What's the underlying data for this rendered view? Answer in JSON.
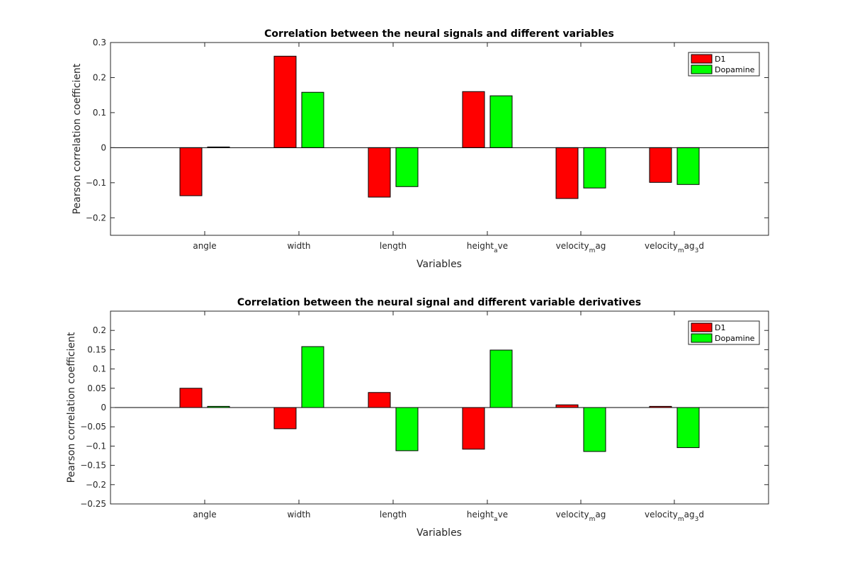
{
  "chart_data": [
    {
      "type": "bar",
      "title": "Correlation between the neural signals and different variables",
      "xlabel": "Variables",
      "ylabel": "Pearson correlation coefficient",
      "ylim": [
        -0.25,
        0.3
      ],
      "yticks": [
        -0.2,
        -0.1,
        0,
        0.1,
        0.2,
        0.3
      ],
      "ytick_labels": [
        "−0.2",
        "−0.1",
        "0",
        "0.1",
        "0.2",
        "0.3"
      ],
      "categories": [
        {
          "base": "angle",
          "sub": "",
          "rest": ""
        },
        {
          "base": "width",
          "sub": "",
          "rest": ""
        },
        {
          "base": "length",
          "sub": "",
          "rest": ""
        },
        {
          "base": "height",
          "sub": "a",
          "rest": "ve"
        },
        {
          "base": "velocity",
          "sub": "m",
          "rest": "ag"
        },
        {
          "base": "velocity",
          "sub": "m",
          "rest": "ag",
          "sub2": "3",
          "rest2": "d"
        }
      ],
      "series": [
        {
          "name": "D1",
          "color": "#ff0000",
          "values": [
            -0.137,
            0.261,
            -0.141,
            0.16,
            -0.145,
            -0.099
          ]
        },
        {
          "name": "Dopamine",
          "color": "#00ff00",
          "values": [
            0.002,
            0.158,
            -0.111,
            0.148,
            -0.115,
            -0.105
          ]
        }
      ],
      "legend": "top-right",
      "grid": false
    },
    {
      "type": "bar",
      "title": "Correlation between the neural signal and different variable derivatives",
      "xlabel": "Variables",
      "ylabel": "Pearson correlation coefficient",
      "ylim": [
        -0.25,
        0.25
      ],
      "yticks": [
        -0.25,
        -0.2,
        -0.15,
        -0.1,
        -0.05,
        0,
        0.05,
        0.1,
        0.15,
        0.2
      ],
      "ytick_labels": [
        "−0.25",
        "−0.2",
        "−0.15",
        "−0.1",
        "−0.05",
        "0",
        "0.05",
        "0.1",
        "0.15",
        "0.2"
      ],
      "categories": [
        {
          "base": "angle",
          "sub": "",
          "rest": ""
        },
        {
          "base": "width",
          "sub": "",
          "rest": ""
        },
        {
          "base": "length",
          "sub": "",
          "rest": ""
        },
        {
          "base": "height",
          "sub": "a",
          "rest": "ve"
        },
        {
          "base": "velocity",
          "sub": "m",
          "rest": "ag"
        },
        {
          "base": "velocity",
          "sub": "m",
          "rest": "ag",
          "sub2": "3",
          "rest2": "d"
        }
      ],
      "series": [
        {
          "name": "D1",
          "color": "#ff0000",
          "values": [
            0.05,
            -0.055,
            0.039,
            -0.108,
            0.007,
            0.003
          ]
        },
        {
          "name": "Dopamine",
          "color": "#00ff00",
          "values": [
            0.003,
            0.158,
            -0.112,
            0.149,
            -0.114,
            -0.104
          ]
        }
      ],
      "legend": "top-right",
      "grid": false
    }
  ]
}
